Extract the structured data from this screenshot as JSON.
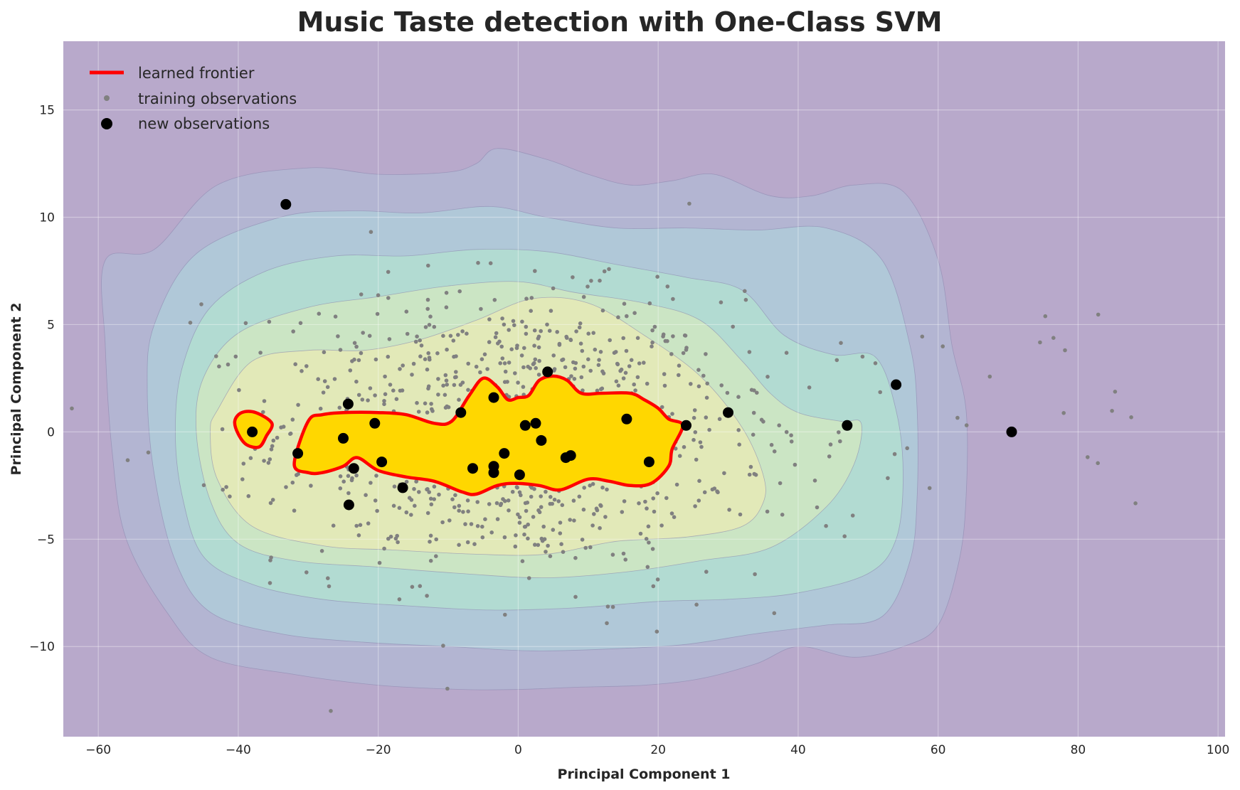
{
  "chart_data": {
    "type": "scatter",
    "title": "Music Taste detection with One-Class SVM",
    "xlabel": "Principal Component 1",
    "ylabel": "Principal Component 2",
    "xlim": [
      -65,
      101
    ],
    "ylim": [
      -14.2,
      18.2
    ],
    "xticks": [
      -60,
      -40,
      -20,
      0,
      20,
      40,
      60,
      80,
      100
    ],
    "yticks": [
      -10,
      -5,
      0,
      5,
      10,
      15
    ],
    "grid": true,
    "legend_position": "top-left",
    "legend": [
      "learned frontier",
      "training observations",
      "new  observations"
    ],
    "colors": {
      "background": "#b8a9cb",
      "frontier": "#ff0000",
      "frontier_fill": "#ffd700",
      "training": "#808080",
      "new": "#000000",
      "contour_levels": [
        "#b8a9cb",
        "#b3b5d2",
        "#b0c8d8",
        "#b2dbd2",
        "#cbe5c4",
        "#e2e9b8"
      ]
    },
    "decision_contours": [
      [
        [
          -59,
          8
        ],
        [
          -52,
          8.5
        ],
        [
          -43,
          11.5
        ],
        [
          -30,
          12.3
        ],
        [
          -20,
          12
        ],
        [
          -10,
          12.1
        ],
        [
          -6,
          12.5
        ],
        [
          -3,
          13.2
        ],
        [
          4,
          12.7
        ],
        [
          10,
          12
        ],
        [
          16,
          11.5
        ],
        [
          22,
          11.7
        ],
        [
          28,
          12
        ],
        [
          36,
          11
        ],
        [
          42,
          11
        ],
        [
          48,
          11.5
        ],
        [
          55,
          11.2
        ],
        [
          60,
          8
        ],
        [
          62,
          4
        ],
        [
          64,
          1
        ],
        [
          64,
          -3
        ],
        [
          63,
          -6
        ],
        [
          60,
          -9
        ],
        [
          55,
          -10
        ],
        [
          48,
          -10.5
        ],
        [
          40,
          -10
        ],
        [
          34,
          -10.8
        ],
        [
          26,
          -11.5
        ],
        [
          18,
          -11.8
        ],
        [
          8,
          -11.9
        ],
        [
          0,
          -12
        ],
        [
          -8,
          -12
        ],
        [
          -20,
          -11.8
        ],
        [
          -32,
          -11.3
        ],
        [
          -44,
          -10.5
        ],
        [
          -50,
          -8.5
        ],
        [
          -56,
          -5
        ],
        [
          -58,
          -1
        ],
        [
          -59,
          4
        ]
      ],
      [
        [
          -52,
          5
        ],
        [
          -46,
          8.3
        ],
        [
          -34,
          10
        ],
        [
          -24,
          10.3
        ],
        [
          -14,
          10.2
        ],
        [
          -4,
          10.5
        ],
        [
          4,
          10
        ],
        [
          14,
          9.5
        ],
        [
          24,
          9.5
        ],
        [
          34,
          9.4
        ],
        [
          44,
          9.5
        ],
        [
          52,
          8
        ],
        [
          56,
          4
        ],
        [
          57,
          1
        ],
        [
          57,
          -3
        ],
        [
          56,
          -6
        ],
        [
          52,
          -8.6
        ],
        [
          44,
          -9
        ],
        [
          34,
          -9.4
        ],
        [
          24,
          -9.9
        ],
        [
          14,
          -10.1
        ],
        [
          2,
          -10.2
        ],
        [
          -10,
          -10
        ],
        [
          -22,
          -9.8
        ],
        [
          -34,
          -9.4
        ],
        [
          -44,
          -8.4
        ],
        [
          -49,
          -6
        ],
        [
          -52,
          -2
        ],
        [
          -53,
          2
        ]
      ],
      [
        [
          -48,
          3
        ],
        [
          -44,
          5.8
        ],
        [
          -36,
          7.5
        ],
        [
          -26,
          8.2
        ],
        [
          -16,
          8.2
        ],
        [
          -6,
          8.5
        ],
        [
          4,
          8.4
        ],
        [
          14,
          7.8
        ],
        [
          24,
          7.2
        ],
        [
          32,
          6.6
        ],
        [
          38,
          4.5
        ],
        [
          45,
          3.6
        ],
        [
          51,
          3.5
        ],
        [
          54,
          1
        ],
        [
          55,
          -2
        ],
        [
          54,
          -5
        ],
        [
          50,
          -6.6
        ],
        [
          40,
          -7.5
        ],
        [
          30,
          -7.8
        ],
        [
          20,
          -7.9
        ],
        [
          8,
          -8.2
        ],
        [
          -4,
          -8.3
        ],
        [
          -16,
          -8.1
        ],
        [
          -28,
          -7.8
        ],
        [
          -38,
          -7.1
        ],
        [
          -45,
          -5.8
        ],
        [
          -48,
          -3
        ],
        [
          -49,
          0
        ]
      ],
      [
        [
          -45,
          2.5
        ],
        [
          -40,
          4.6
        ],
        [
          -30,
          5.8
        ],
        [
          -20,
          6.3
        ],
        [
          -10,
          6.8
        ],
        [
          0,
          7
        ],
        [
          8,
          6.5
        ],
        [
          18,
          6
        ],
        [
          26,
          5.2
        ],
        [
          32,
          3.3
        ],
        [
          36,
          1.8
        ],
        [
          40,
          0.9
        ],
        [
          46,
          0.5
        ],
        [
          49,
          0.4
        ],
        [
          48,
          -1.5
        ],
        [
          44,
          -3.5
        ],
        [
          36,
          -5.4
        ],
        [
          26,
          -6
        ],
        [
          16,
          -6.5
        ],
        [
          4,
          -6.8
        ],
        [
          -8,
          -6.6
        ],
        [
          -20,
          -6.3
        ],
        [
          -32,
          -6
        ],
        [
          -40,
          -5.2
        ],
        [
          -44,
          -3.2
        ],
        [
          -46,
          0
        ]
      ],
      [
        [
          -43,
          1
        ],
        [
          -38,
          3.3
        ],
        [
          -30,
          3.8
        ],
        [
          -22,
          3.8
        ],
        [
          -14,
          4.3
        ],
        [
          -6,
          5.2
        ],
        [
          2,
          6.2
        ],
        [
          10,
          6
        ],
        [
          18,
          4.5
        ],
        [
          26,
          2.6
        ],
        [
          32,
          0.2
        ],
        [
          35,
          -2
        ],
        [
          35,
          -3.3
        ],
        [
          32,
          -4.4
        ],
        [
          24,
          -4.9
        ],
        [
          14,
          -5.1
        ],
        [
          4,
          -5.7
        ],
        [
          -6,
          -5.7
        ],
        [
          -18,
          -5.5
        ],
        [
          -28,
          -5.3
        ],
        [
          -38,
          -4.4
        ],
        [
          -43,
          -2.2
        ],
        [
          -44,
          0
        ]
      ]
    ],
    "frontiers": [
      [
        [
          -40.5,
          0.5
        ],
        [
          -39.5,
          0.9
        ],
        [
          -37.5,
          0.9
        ],
        [
          -35.2,
          0.4
        ],
        [
          -36,
          -0.2
        ],
        [
          -37,
          -0.7
        ],
        [
          -38.8,
          -0.6
        ],
        [
          -40,
          -0.1
        ]
      ],
      [
        [
          -32,
          -1.5
        ],
        [
          -30,
          0.5
        ],
        [
          -28,
          0.8
        ],
        [
          -25,
          0.9
        ],
        [
          -20,
          0.9
        ],
        [
          -16,
          0.8
        ],
        [
          -12,
          0.4
        ],
        [
          -9.5,
          0.5
        ],
        [
          -7,
          1.7
        ],
        [
          -5,
          2.5
        ],
        [
          -3,
          2.1
        ],
        [
          -1.5,
          1.5
        ],
        [
          0,
          1.6
        ],
        [
          1.5,
          1.7
        ],
        [
          3,
          2.4
        ],
        [
          5,
          2.6
        ],
        [
          7,
          2.4
        ],
        [
          9,
          1.8
        ],
        [
          12,
          1.8
        ],
        [
          16,
          1.8
        ],
        [
          18,
          1.5
        ],
        [
          20,
          1.1
        ],
        [
          21.5,
          0.6
        ],
        [
          23.5,
          0.3
        ],
        [
          22,
          -0.8
        ],
        [
          21.5,
          -1.6
        ],
        [
          19,
          -2.4
        ],
        [
          16,
          -2.5
        ],
        [
          13,
          -2.3
        ],
        [
          10,
          -2.2
        ],
        [
          6,
          -2.7
        ],
        [
          3,
          -2.5
        ],
        [
          -0.5,
          -2.4
        ],
        [
          -3,
          -2.5
        ],
        [
          -6,
          -2.9
        ],
        [
          -8,
          -2.8
        ],
        [
          -12,
          -2.3
        ],
        [
          -16,
          -2.1
        ],
        [
          -20,
          -1.8
        ],
        [
          -23,
          -1.2
        ],
        [
          -25,
          -1.6
        ],
        [
          -28,
          -1.9
        ],
        [
          -30,
          -1.9
        ]
      ]
    ],
    "new_observations": [
      [
        -33.2,
        10.6
      ],
      [
        -38,
        0
      ],
      [
        -24.3,
        1.3
      ],
      [
        -20.5,
        0.4
      ],
      [
        -25,
        -0.3
      ],
      [
        -31.5,
        -1.0
      ],
      [
        -23.5,
        -1.7
      ],
      [
        -19.5,
        -1.4
      ],
      [
        -24.2,
        -3.4
      ],
      [
        -16.5,
        -2.6
      ],
      [
        -8.2,
        0.9
      ],
      [
        -6.5,
        -1.7
      ],
      [
        -3.5,
        -1.9
      ],
      [
        -3.5,
        -1.6
      ],
      [
        -3.5,
        1.6
      ],
      [
        -2,
        -1.0
      ],
      [
        0.2,
        -2
      ],
      [
        1,
        0.3
      ],
      [
        2.5,
        0.4
      ],
      [
        3.3,
        -0.4
      ],
      [
        4.2,
        2.8
      ],
      [
        6.8,
        -1.2
      ],
      [
        7.5,
        -1.1
      ],
      [
        15.5,
        0.6
      ],
      [
        18.7,
        -1.4
      ],
      [
        24,
        0.3
      ],
      [
        30,
        0.9
      ],
      [
        47,
        0.3
      ],
      [
        54,
        2.2
      ],
      [
        70.5,
        0
      ]
    ]
  }
}
